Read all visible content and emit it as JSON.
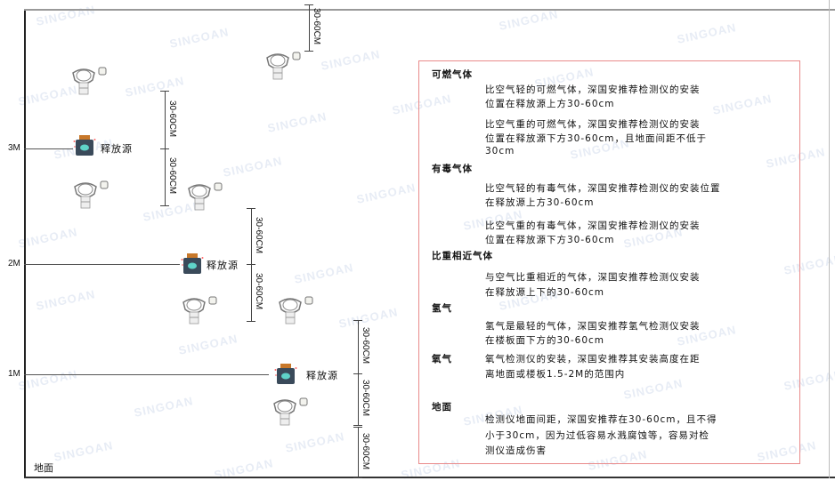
{
  "watermark": "SINGOAN 深国安",
  "levels": {
    "m3": "3M",
    "m2": "2M",
    "m1": "1M",
    "ground": "地面"
  },
  "source_label": "释放源",
  "dimension_label": "30-60CM",
  "colors": {
    "source_body": "#3a4a5a",
    "source_cap": "#c8782a",
    "source_face": "#5fd3c8",
    "box_border": "#e98a8a"
  },
  "info": {
    "flammable": {
      "title": "可燃气体",
      "lines": [
        "比空气轻的可燃气体，深国安推荐检测仪的安装",
        "位置在释放源上方30-60cm",
        "比空气重的可燃气体，深国安推荐检测仪的安装",
        "位置在释放源下方30-60cm，且地面间距不低于",
        "30cm"
      ]
    },
    "toxic": {
      "title": "有毒气体",
      "lines": [
        "比空气轻的有毒气体，深国安推荐检测仪的安装位置",
        "在释放源上方30-60cm",
        "比空气重的有毒气体，深国安推荐检测仪的安装",
        "位置在释放源下方30-60cm"
      ]
    },
    "similar": {
      "title": "比重相近气体",
      "lines": [
        "与空气比重相近的气体，深国安推荐检测仪安装",
        "在释放源上下的30-60cm"
      ]
    },
    "hydrogen": {
      "title": "氢气",
      "lines": [
        "氢气是最轻的气体，深国安推荐氢气检测仪安装",
        "在楼板面下方的30-60cm"
      ]
    },
    "oxygen": {
      "title": "氧气",
      "lines": [
        "氧气检测仪的安装，深国安推荐其安装高度在距",
        "离地面或楼板1.5-2M的范围内"
      ]
    },
    "ground": {
      "title": "地面",
      "lines": [
        "检测仪地面间距，深国安推荐在30-60cm，且不得",
        "小于30cm，因为过低容易水溅腐蚀等，容易对检",
        "测仪造成伤害"
      ]
    }
  }
}
